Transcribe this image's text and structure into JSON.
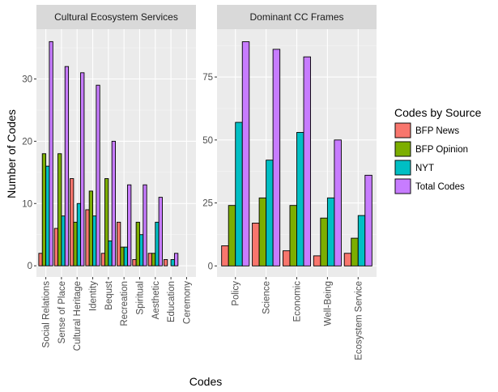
{
  "chart_data": {
    "type": "bar",
    "xlabel": "Codes",
    "ylabel": "Number of Codes",
    "legend": {
      "title": "Codes by Source",
      "position": "right",
      "entries": [
        {
          "name": "BFP News",
          "color": "#F8766D"
        },
        {
          "name": "BFP Opinion",
          "color": "#7CAE00"
        },
        {
          "name": "NYT",
          "color": "#00BFC4"
        },
        {
          "name": "Total Codes",
          "color": "#C77CFF"
        }
      ]
    },
    "grid": true,
    "panels": [
      {
        "title": "Cultural Ecosystem Services",
        "categories": [
          "Social Relations",
          "Sense of Place",
          "Cultural Heritage",
          "Identity",
          "Bequst",
          "Recreation",
          "Spiritual",
          "Aesthetic",
          "Education",
          "Ceremony"
        ],
        "yticks": [
          0,
          10,
          20,
          30
        ],
        "ylim": [
          -1.8,
          38
        ],
        "series": [
          {
            "name": "BFP News",
            "values": [
              2,
              6,
              14,
              9,
              2,
              7,
              1,
              2,
              1,
              0
            ]
          },
          {
            "name": "BFP Opinion",
            "values": [
              18,
              18,
              7,
              12,
              14,
              3,
              7,
              2,
              0,
              0
            ]
          },
          {
            "name": "NYT",
            "values": [
              16,
              8,
              10,
              8,
              4,
              3,
              5,
              7,
              1,
              0
            ]
          },
          {
            "name": "Total Codes",
            "values": [
              36,
              32,
              31,
              29,
              20,
              13,
              13,
              11,
              2,
              0
            ]
          }
        ]
      },
      {
        "title": "Dominant CC Frames",
        "categories": [
          "Policy",
          "Science",
          "Economic",
          "Well-Being",
          "Ecosystem Service"
        ],
        "yticks": [
          0,
          25,
          50,
          75
        ],
        "ylim": [
          -4.4,
          94
        ],
        "series": [
          {
            "name": "BFP News",
            "values": [
              8,
              17,
              6,
              4,
              5
            ]
          },
          {
            "name": "BFP Opinion",
            "values": [
              24,
              27,
              24,
              19,
              11
            ]
          },
          {
            "name": "NYT",
            "values": [
              57,
              42,
              53,
              27,
              20
            ]
          },
          {
            "name": "Total Codes",
            "values": [
              89,
              86,
              83,
              50,
              36
            ]
          }
        ]
      }
    ]
  }
}
